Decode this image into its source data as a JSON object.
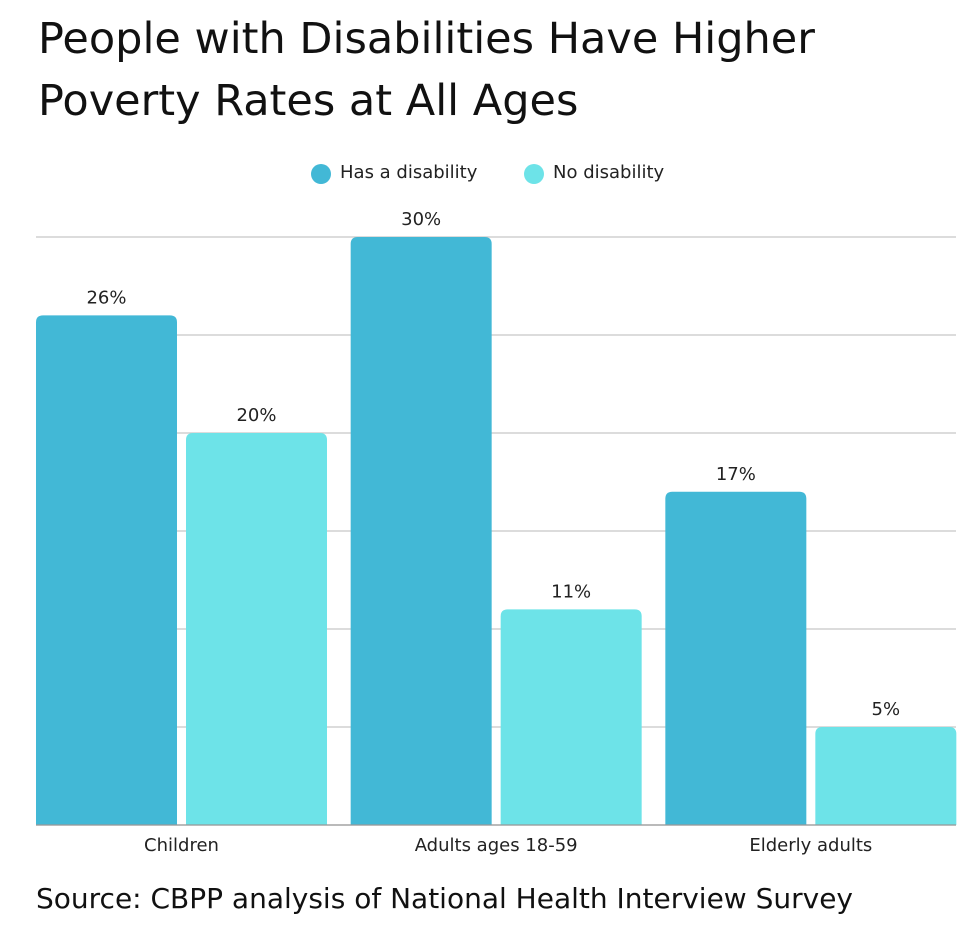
{
  "chart_data": {
    "type": "bar",
    "title": "People with Disabilities Have Higher Poverty Rates at All Ages",
    "source": "Source: CBPP analysis of National Health Interview Survey",
    "categories": [
      "Children",
      "Adults ages 18-59",
      "Elderly adults"
    ],
    "series": [
      {
        "name": "Has a disability",
        "color": "#42b8d6",
        "values": [
          26,
          30,
          17
        ],
        "value_labels": [
          "26%",
          "30%",
          "17%"
        ]
      },
      {
        "name": "No disability",
        "color": "#6de3e8",
        "values": [
          20,
          11,
          5
        ],
        "value_labels": [
          "20%",
          "11%",
          "5%"
        ]
      }
    ],
    "ylim": [
      0,
      30
    ],
    "yticks": [
      0,
      5,
      10,
      15,
      20,
      25,
      30
    ],
    "grid": true,
    "legend": "top"
  }
}
